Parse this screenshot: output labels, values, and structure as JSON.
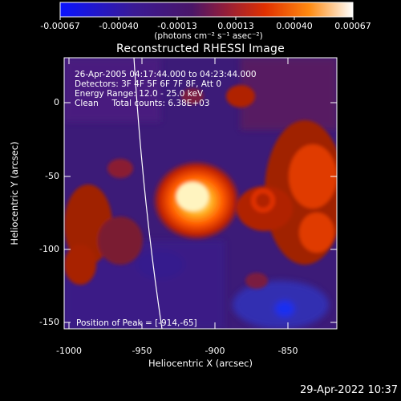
{
  "title": "Reconstructed RHESSI Image",
  "colorbar": {
    "ticks": [
      "-0.00067",
      "-0.00040",
      "-0.00013",
      "0.00013",
      "0.00040",
      "0.00067"
    ],
    "unit_label": "(photons cm⁻² s⁻¹ asec⁻²)",
    "colormap": [
      "#0a14ff",
      "#3a1a90",
      "#3b1370",
      "#6a1d5a",
      "#cc2a00",
      "#ff7a00",
      "#ffe080",
      "#ffffff"
    ]
  },
  "info": {
    "time": "26-Apr-2005 04:17:44.000 to 04:23:44.000",
    "detectors": "Detectors: 3F 4F 5F 6F 7F 8F, Att 0",
    "energy": "Energy Range: 12.0 - 25.0 keV",
    "clean": "Clean     Total counts: 6.38E+03"
  },
  "peak_label": "Position of Peak = [-914,-65]",
  "axes": {
    "xlabel": "Heliocentric X (arcsec)",
    "ylabel": "Heliocentric Y (arcsec)",
    "xticks": [
      "-1000",
      "-950",
      "-900",
      "-850"
    ],
    "yticks": [
      "0",
      "-50",
      "-100",
      "-150"
    ]
  },
  "footer_date": "29-Apr-2022 10:37"
}
